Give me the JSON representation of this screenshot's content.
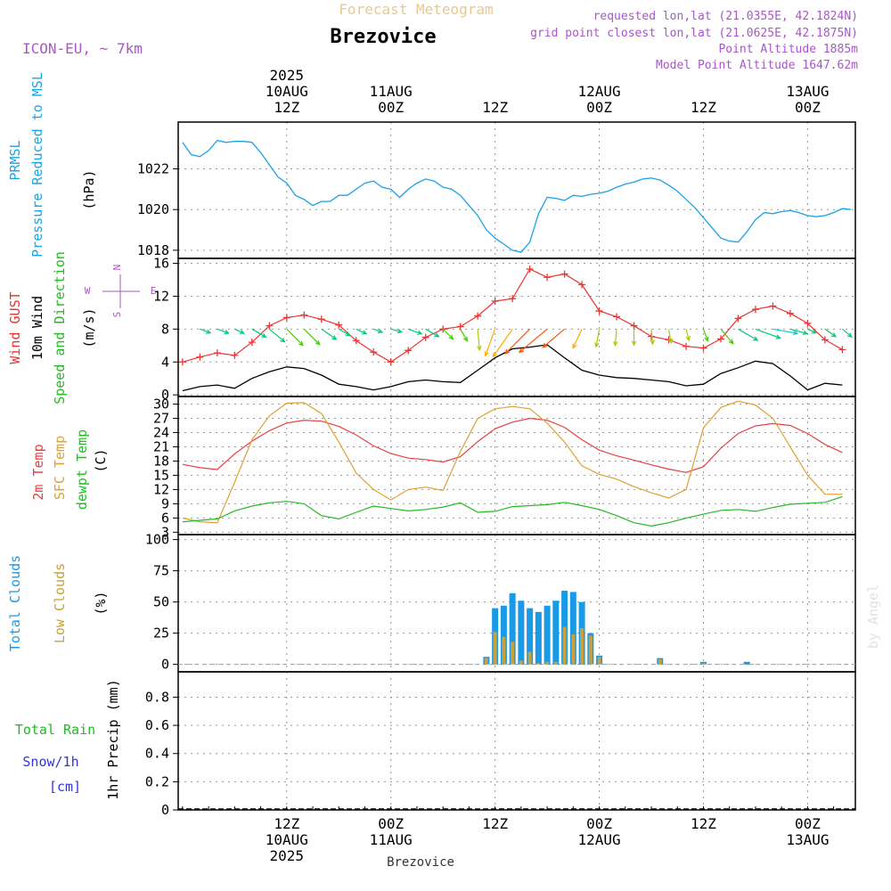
{
  "header": {
    "model_label": "ICON-EU, ~ 7km",
    "forecast_title": "Forecast Meteogram",
    "location": "Brezovice",
    "requested": "requested lon,lat (21.0355E, 42.1824N)",
    "closest": "grid point closest lon,lat (21.0625E, 42.1875N)",
    "point_altitude": "Point Altitude 1885m",
    "model_altitude": "Model Point Altitude 1647.62m",
    "footer_location": "Brezovice",
    "watermark": "by Angel"
  },
  "time_axis": {
    "top_labels": [
      {
        "h": 12,
        "lines": [
          "2025",
          "10AUG",
          "12Z"
        ]
      },
      {
        "h": 24,
        "lines": [
          "11AUG",
          "00Z"
        ]
      },
      {
        "h": 36,
        "lines": [
          "12Z"
        ]
      },
      {
        "h": 48,
        "lines": [
          "12AUG",
          "00Z"
        ]
      },
      {
        "h": 60,
        "lines": [
          "12Z"
        ]
      },
      {
        "h": 72,
        "lines": [
          "13AUG",
          "00Z"
        ]
      }
    ],
    "bottom_labels": [
      {
        "h": 12,
        "lines": [
          "12Z",
          "10AUG",
          "2025"
        ]
      },
      {
        "h": 24,
        "lines": [
          "00Z",
          "11AUG"
        ]
      },
      {
        "h": 36,
        "lines": [
          "12Z"
        ]
      },
      {
        "h": 48,
        "lines": [
          "00Z",
          "12AUG"
        ]
      },
      {
        "h": 60,
        "lines": [
          "12Z"
        ]
      },
      {
        "h": 72,
        "lines": [
          "00Z",
          "13AUG"
        ]
      }
    ]
  },
  "colors": {
    "pressure": "#1aa3e6",
    "gust": "#ee3333",
    "wind": "#000000",
    "direction_label": "#22bb22",
    "temp2m": "#e84040",
    "sfc": "#e0a030",
    "dewpt": "#22bb22",
    "total_clouds": "#1a9ae6",
    "low_clouds": "#c8a040",
    "rain_label": "#22bb22",
    "snow_label": "#3333dd",
    "compass": "#aa55cc",
    "meta": "#aa55cc",
    "forecast_title": "#e8c890",
    "arrow_palette": [
      "#7a00cc",
      "#3a3aff",
      "#0099ff",
      "#00cccc",
      "#00cc77",
      "#44cc00",
      "#aacc00",
      "#ffaa00",
      "#ff5500",
      "#ff0000",
      "#ff2288",
      "#cc00cc"
    ]
  },
  "chart_data": [
    {
      "type": "line",
      "panel": "pressure",
      "ylabel_lines": [
        "PRMSL",
        "Pressure Reduced to MSL"
      ],
      "unit": "(hPa)",
      "yticks": [
        1018,
        1020,
        1022
      ],
      "ylim": [
        1017.6,
        1024.3
      ],
      "x_hours": [
        0,
        1,
        2,
        3,
        4,
        5,
        6,
        7,
        8,
        9,
        10,
        11,
        12,
        13,
        14,
        15,
        16,
        17,
        18,
        19,
        20,
        21,
        22,
        23,
        24,
        25,
        26,
        27,
        28,
        29,
        30,
        31,
        32,
        33,
        34,
        35,
        36,
        37,
        38,
        39,
        40,
        41,
        42,
        43,
        44,
        45,
        46,
        47,
        48,
        49,
        50,
        51,
        52,
        53,
        54,
        55,
        56,
        57,
        58,
        59,
        60,
        61,
        62,
        63,
        64,
        65,
        66,
        67,
        68,
        69,
        70,
        71,
        72,
        73,
        74,
        75,
        76,
        77
      ],
      "series": [
        {
          "values": [
            1023.3,
            1022.7,
            1022.6,
            1022.9,
            1023.4,
            1023.3,
            1023.35,
            1023.35,
            1023.3,
            1022.8,
            1022.2,
            1021.6,
            1021.3,
            1020.7,
            1020.5,
            1020.2,
            1020.4,
            1020.4,
            1020.7,
            1020.7,
            1021.0,
            1021.3,
            1021.4,
            1021.1,
            1021.0,
            1020.6,
            1021.0,
            1021.3,
            1021.5,
            1021.4,
            1021.1,
            1021.0,
            1020.7,
            1020.2,
            1019.7,
            1019.0,
            1018.6,
            1018.3,
            1018.0,
            1017.9,
            1018.4,
            1019.8,
            1020.6,
            1020.55,
            1020.45,
            1020.7,
            1020.65,
            1020.75,
            1020.8,
            1020.9,
            1021.1,
            1021.25,
            1021.35,
            1021.5,
            1021.55,
            1021.45,
            1021.2,
            1020.9,
            1020.5,
            1020.1,
            1019.6,
            1019.1,
            1018.6,
            1018.45,
            1018.4,
            1018.9,
            1019.5,
            1019.85,
            1019.8,
            1019.9,
            1019.95,
            1019.85,
            1019.7,
            1019.65,
            1019.7,
            1019.85,
            1020.05,
            1020.0
          ]
        }
      ]
    },
    {
      "type": "line",
      "panel": "wind",
      "ylabel_lines": [
        "Wind GUST",
        "10m Wind",
        "Speed and Direction"
      ],
      "unit": "(m/s)",
      "yticks": [
        0,
        4,
        8,
        12,
        16
      ],
      "ylim": [
        -0.2,
        16.6
      ],
      "compass": {
        "n": "N",
        "e": "E",
        "s": "S",
        "w": "W"
      },
      "x_hours": [
        0,
        2,
        4,
        6,
        8,
        10,
        12,
        14,
        16,
        18,
        20,
        22,
        24,
        26,
        28,
        30,
        32,
        34,
        36,
        38,
        40,
        42,
        44,
        46,
        48,
        50,
        52,
        54,
        56,
        58,
        60,
        62,
        64,
        66,
        68,
        70,
        72,
        74,
        76
      ],
      "series": [
        {
          "name": "Wind GUST",
          "values": [
            4.0,
            4.6,
            5.1,
            4.8,
            6.4,
            8.4,
            9.4,
            9.7,
            9.2,
            8.5,
            6.6,
            5.2,
            4.0,
            5.4,
            7.0,
            8.0,
            8.3,
            9.6,
            11.4,
            11.7,
            15.3,
            14.3,
            14.7,
            13.4,
            10.2,
            9.5,
            8.4,
            7.1,
            6.7,
            5.9,
            5.7,
            6.8,
            9.3,
            10.4,
            10.8,
            9.9,
            8.7,
            6.7,
            5.5
          ]
        },
        {
          "name": "10m Wind",
          "values": [
            0.5,
            1.0,
            1.2,
            0.8,
            2.0,
            2.8,
            3.4,
            3.2,
            2.4,
            1.3,
            1.0,
            0.6,
            1.0,
            1.6,
            1.8,
            1.6,
            1.5,
            3.0,
            4.5,
            5.6,
            5.8,
            6.1,
            4.5,
            3.0,
            2.4,
            2.1,
            2.0,
            1.8,
            1.6,
            1.1,
            1.3,
            2.6,
            3.3,
            4.1,
            3.8,
            2.3,
            0.6,
            1.4,
            1.2
          ]
        }
      ],
      "wind_dir_deg": [
        110,
        110,
        110,
        115,
        120,
        130,
        135,
        135,
        125,
        120,
        115,
        110,
        105,
        110,
        120,
        135,
        150,
        175,
        200,
        215,
        225,
        230,
        230,
        205,
        190,
        185,
        180,
        175,
        170,
        165,
        160,
        140,
        120,
        110,
        100,
        105,
        115,
        125,
        130
      ]
    },
    {
      "type": "line",
      "panel": "temperature",
      "ylabel_lines": [
        "2m Temp",
        "SFC Temp",
        "dewpt Temp"
      ],
      "unit": "(C)",
      "yticks": [
        3,
        6,
        9,
        12,
        15,
        18,
        21,
        24,
        27,
        30
      ],
      "ylim": [
        2.5,
        31.6
      ],
      "x_hours": [
        0,
        2,
        4,
        6,
        8,
        10,
        12,
        14,
        16,
        18,
        20,
        22,
        24,
        26,
        28,
        30,
        32,
        34,
        36,
        38,
        40,
        42,
        44,
        46,
        48,
        50,
        52,
        54,
        56,
        58,
        60,
        62,
        64,
        66,
        68,
        70,
        72,
        74,
        76
      ],
      "series": [
        {
          "name": "2m Temp",
          "values": [
            17.3,
            16.6,
            16.2,
            19.5,
            22.2,
            24.4,
            26.0,
            26.6,
            26.4,
            25.3,
            23.5,
            21.2,
            19.6,
            18.6,
            18.3,
            17.8,
            18.9,
            22.1,
            24.8,
            26.2,
            27.0,
            26.6,
            25.1,
            22.5,
            20.3,
            19.1,
            18.2,
            17.2,
            16.3,
            15.6,
            16.8,
            20.7,
            23.8,
            25.4,
            25.9,
            25.5,
            23.8,
            21.5,
            19.8
          ]
        },
        {
          "name": "SFC Temp",
          "values": [
            6.0,
            5.2,
            5.0,
            13.5,
            22.5,
            27.5,
            30.2,
            30.3,
            28.0,
            22.0,
            15.5,
            12.0,
            9.8,
            12.0,
            12.5,
            11.8,
            20.0,
            27.0,
            29.0,
            29.5,
            29.0,
            26.0,
            22.0,
            17.0,
            15.2,
            14.2,
            12.6,
            11.3,
            10.2,
            12.0,
            25.0,
            29.3,
            30.6,
            29.8,
            27.0,
            21.0,
            15.0,
            11.0,
            11.0
          ]
        },
        {
          "name": "dewpt Temp",
          "values": [
            5.2,
            5.5,
            5.8,
            7.5,
            8.5,
            9.2,
            9.5,
            9.0,
            6.5,
            5.8,
            7.2,
            8.5,
            8.0,
            7.5,
            7.8,
            8.3,
            9.2,
            7.2,
            7.4,
            8.4,
            8.6,
            8.8,
            9.3,
            8.6,
            7.8,
            6.5,
            5.0,
            4.3,
            5.0,
            6.0,
            6.8,
            7.6,
            7.8,
            7.4,
            8.2,
            8.9,
            9.1,
            9.3,
            10.5
          ]
        }
      ]
    },
    {
      "type": "bar",
      "panel": "clouds",
      "ylabel_lines": [
        "Total Clouds",
        "Low Clouds"
      ],
      "unit": "(%)",
      "yticks": [
        0,
        25,
        50,
        75,
        100
      ],
      "ylim": [
        -6,
        104
      ],
      "x_hours": [
        35,
        36,
        37,
        38,
        39,
        40,
        41,
        42,
        43,
        44,
        45,
        46,
        47,
        48,
        55,
        60,
        65
      ],
      "series": [
        {
          "name": "Total Clouds",
          "values": [
            6,
            45,
            47,
            57,
            51,
            45,
            42,
            47,
            51,
            59,
            58,
            50,
            25,
            7,
            5,
            2,
            2
          ]
        },
        {
          "name": "Low Clouds",
          "values": [
            5,
            26,
            22,
            18,
            3,
            10,
            1,
            2,
            2,
            30,
            24,
            29,
            23,
            6,
            4,
            1,
            0
          ]
        }
      ]
    },
    {
      "type": "bar",
      "panel": "precip",
      "ylabel_lines": [
        "Total Rain",
        "Snow/1h",
        "[cm]"
      ],
      "unit": "1hr Precip (mm)",
      "yticks": [
        0,
        0.2,
        0.4,
        0.6,
        0.8
      ],
      "ylim": [
        0,
        0.98
      ],
      "x_hours": [],
      "series": [
        {
          "name": "Total Rain",
          "values": []
        },
        {
          "name": "Snow/1h",
          "values": []
        }
      ]
    }
  ]
}
